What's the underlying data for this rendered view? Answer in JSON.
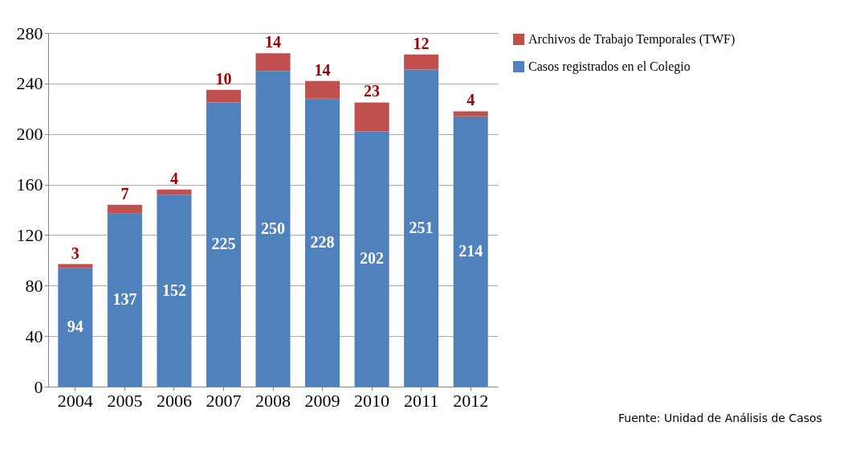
{
  "chart_data": {
    "type": "bar",
    "stacked": true,
    "categories": [
      "2004",
      "2005",
      "2006",
      "2007",
      "2008",
      "2009",
      "2010",
      "2011",
      "2012"
    ],
    "series": [
      {
        "name": "Casos registrados en el Colegio",
        "color": "#4f81bd",
        "values": [
          94,
          137,
          152,
          225,
          250,
          228,
          202,
          251,
          214
        ]
      },
      {
        "name": "Archivos de Trabajo Temporales (TWF)",
        "color": "#c0504d",
        "values": [
          3,
          7,
          4,
          10,
          14,
          14,
          23,
          12,
          4
        ]
      }
    ],
    "ylim": [
      0,
      280
    ],
    "yticks": [
      0,
      40,
      80,
      120,
      160,
      200,
      240,
      280
    ],
    "grid": "y",
    "legend": "right",
    "data_labels": true,
    "annotations": [
      "Fuente: Unidad de Análisis de Casos"
    ]
  }
}
